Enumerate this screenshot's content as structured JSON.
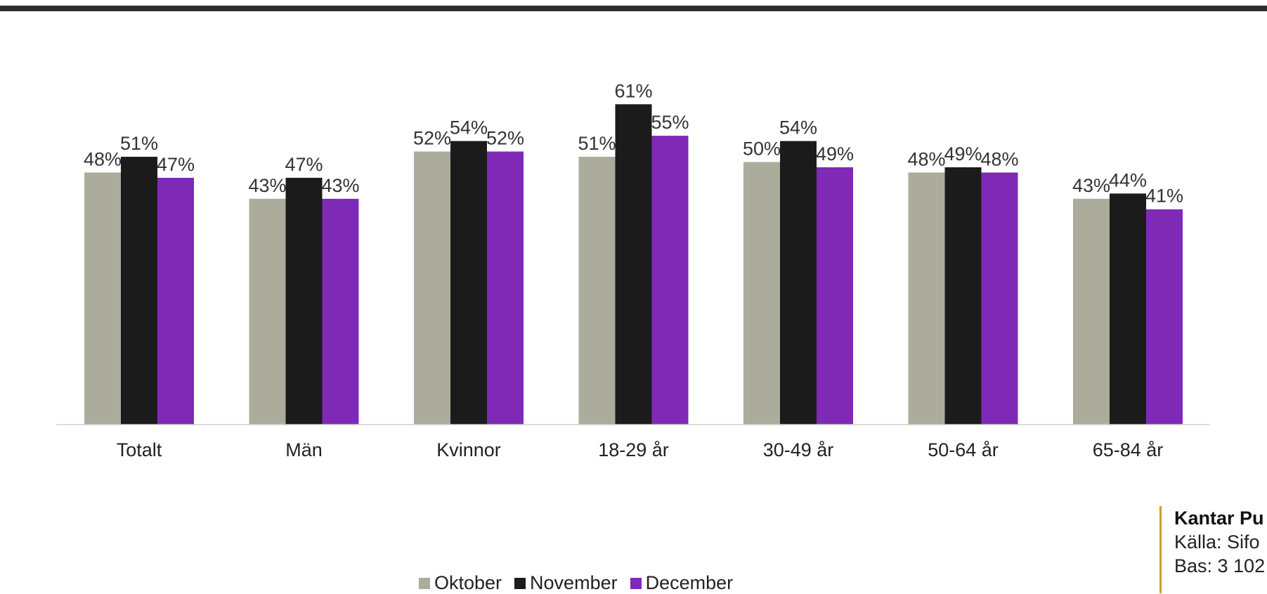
{
  "chart_data": {
    "type": "bar",
    "categories": [
      "Totalt",
      "Män",
      "Kvinnor",
      "18-29 år",
      "30-49 år",
      "50-64 år",
      "65-84 år"
    ],
    "series": [
      {
        "name": "Oktober",
        "color": "#acac9d",
        "values": [
          48,
          43,
          52,
          51,
          50,
          48,
          43
        ]
      },
      {
        "name": "November",
        "color": "#1b1b1b",
        "values": [
          51,
          47,
          54,
          61,
          54,
          49,
          44
        ]
      },
      {
        "name": "December",
        "color": "#7f29b7",
        "values": [
          47,
          43,
          52,
          55,
          49,
          48,
          41
        ]
      }
    ],
    "value_suffix": "%",
    "ylim": [
      0,
      100
    ],
    "grid": false,
    "legend_position": "bottom"
  },
  "source": {
    "line1": "Kantar Pu",
    "line2": "Källa: Sifo",
    "line3": "Bas: 3 102"
  }
}
